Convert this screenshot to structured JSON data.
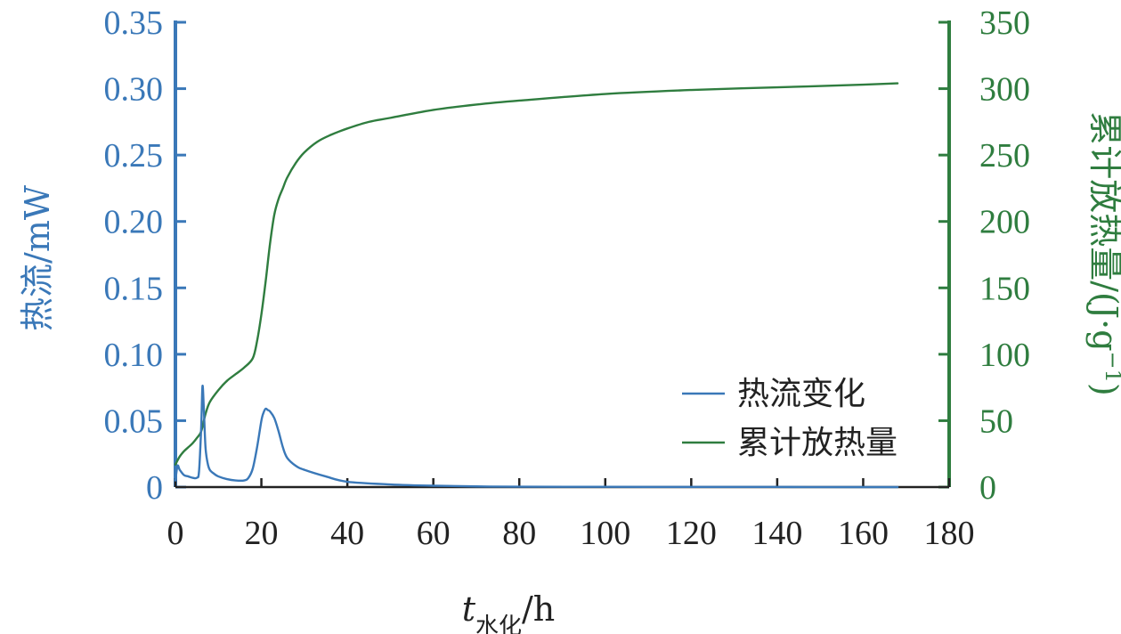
{
  "colors": {
    "left_axis": "#3a78b8",
    "right_axis": "#2f7d3f",
    "heat_flow_line": "#3a78b8",
    "cumulative_line": "#2f7d3f",
    "x_axis": "#222222"
  },
  "chart_data": {
    "type": "line",
    "xlim": [
      0,
      180
    ],
    "x_ticks": [
      "0",
      "20",
      "40",
      "60",
      "80",
      "100",
      "120",
      "140",
      "160",
      "180"
    ],
    "x_tick_values": [
      0,
      20,
      40,
      60,
      80,
      100,
      120,
      140,
      160,
      180
    ],
    "xlabel_main": "t",
    "xlabel_sub": "水化",
    "xlabel_unit": "/h",
    "ylabel_left": "热流/mW",
    "ylim_left": [
      0,
      0.35
    ],
    "y_left_ticks": [
      "0",
      "0.05",
      "0.10",
      "0.15",
      "0.20",
      "0.25",
      "0.30",
      "0.35"
    ],
    "y_left_tick_values": [
      0,
      0.05,
      0.1,
      0.15,
      0.2,
      0.25,
      0.3,
      0.35
    ],
    "ylabel_right_main": "累计放热量/(J·g",
    "ylabel_right_sup": "−1",
    "ylabel_right_close": ")",
    "ylim_right": [
      0,
      350
    ],
    "y_right_ticks": [
      "0",
      "50",
      "100",
      "150",
      "200",
      "250",
      "300",
      "350"
    ],
    "y_right_tick_values": [
      0,
      50,
      100,
      150,
      200,
      250,
      300,
      350
    ],
    "legend_position": "lower-right",
    "grid": false,
    "series": [
      {
        "name": "热流变化",
        "axis": "left",
        "x": [
          0,
          0.5,
          1,
          2,
          3,
          4,
          5,
          5.5,
          6,
          6.3,
          6.6,
          7,
          7.5,
          8,
          9,
          10,
          12,
          14,
          16,
          17,
          18,
          19,
          20,
          20.5,
          21,
          21.5,
          22,
          23,
          24,
          25,
          26,
          28,
          30,
          35,
          40,
          50,
          60,
          70,
          80,
          100,
          120,
          140,
          160,
          168
        ],
        "values": [
          0.005,
          0.016,
          0.013,
          0.009,
          0.008,
          0.007,
          0.007,
          0.012,
          0.045,
          0.076,
          0.06,
          0.03,
          0.018,
          0.013,
          0.01,
          0.008,
          0.006,
          0.005,
          0.005,
          0.007,
          0.014,
          0.03,
          0.05,
          0.056,
          0.059,
          0.058,
          0.057,
          0.052,
          0.042,
          0.03,
          0.022,
          0.016,
          0.013,
          0.008,
          0.004,
          0.002,
          0.001,
          0.0005,
          0.0003,
          0.0002,
          0.0001,
          0.0001,
          0,
          0
        ]
      },
      {
        "name": "累计放热量",
        "axis": "right",
        "x": [
          0,
          1,
          2,
          3,
          4,
          5,
          6,
          7,
          8,
          10,
          12,
          14,
          16,
          18,
          19,
          20,
          21,
          22,
          23,
          24,
          25,
          26,
          28,
          30,
          33,
          36,
          40,
          45,
          50,
          60,
          70,
          80,
          100,
          120,
          140,
          160,
          168
        ],
        "values": [
          17,
          23,
          27,
          30,
          33,
          37,
          42,
          55,
          64,
          73,
          80,
          85,
          90,
          97,
          110,
          130,
          155,
          183,
          205,
          217,
          225,
          233,
          244,
          252,
          260,
          265,
          270,
          275,
          278,
          284,
          288,
          291,
          296,
          299,
          301,
          303,
          304
        ]
      }
    ]
  }
}
